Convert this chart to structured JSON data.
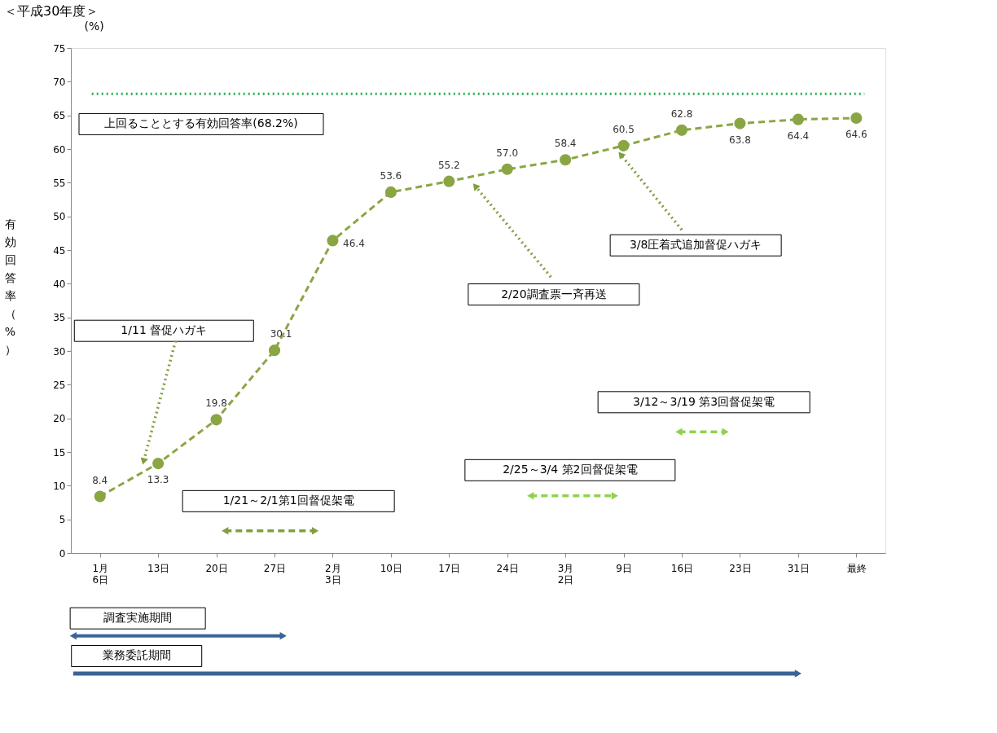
{
  "chart_data": {
    "type": "line",
    "title": "＜平成30年度＞",
    "ylabel": "有効回答率（%）",
    "categories": [
      "1月\n6日",
      "13日",
      "20日",
      "27日",
      "2月\n3日",
      "10日",
      "17日",
      "24日",
      "3月\n2日",
      "9日",
      "16日",
      "23日",
      "31日",
      "最終"
    ],
    "series": [
      {
        "color": "#8aa644",
        "values": [
          8.4,
          13.3,
          19.8,
          30.1,
          46.4,
          53.6,
          55.2,
          57.0,
          58.4,
          60.5,
          62.8,
          63.8,
          64.4,
          64.6
        ]
      }
    ],
    "ylim": [
      0,
      75
    ],
    "yticks": [
      0,
      5,
      10,
      15,
      20,
      25,
      30,
      35,
      40,
      45,
      50,
      55,
      60,
      65,
      70,
      75
    ],
    "ref_lines": [
      {
        "axis": "y",
        "value": 68.2,
        "label": "上回ることとする有効回答率(68.2%)",
        "color": "#22b14c",
        "line_style": "dotted"
      }
    ],
    "annotations": [
      "(%)",
      "1/11 督促ハガキ",
      "1/21～2/1第1回督促架電",
      "2/20調査票一斉再送",
      "2/25～3/4 第2回督促架電",
      "3/8圧着式追加督促ハガキ",
      "3/12～3/19 第3回督促架電",
      "調査実施期間",
      "業務委託期間"
    ],
    "value_labels": [
      "8.4",
      "13.3",
      "19.8",
      "30.1",
      "46.4",
      "53.6",
      "55.2",
      "57.0",
      "58.4",
      "60.5",
      "62.8",
      "63.8",
      "64.4",
      "64.6"
    ],
    "marker": "circle",
    "line_style": "dashed",
    "grid": false
  }
}
